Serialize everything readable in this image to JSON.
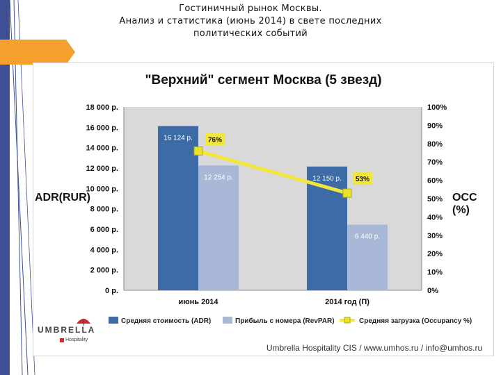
{
  "slide": {
    "title_lines": [
      "Гостиничный рынок Москвы.",
      "Анализ и статистика (июнь 2014)  в свете последних",
      "политических событий"
    ]
  },
  "branding": {
    "logo_text": "UMBRELLA",
    "logo_sub": "Hospitality",
    "footer": "Umbrella Hospitality CIS / www.umhos.ru / info@umhos.ru"
  },
  "colors": {
    "left_band": "#3e4f94",
    "accent_tab": "#f5a02d",
    "plot_bg": "#d9d9d9",
    "adr": "#3c6ba5",
    "revpar": "#a9b8d6",
    "occupancy_line": "#f0e73a",
    "occupancy_marker": "#e9e12a"
  },
  "chart_data": {
    "type": "bar",
    "title": "\"Верхний\" сегмент Москва  (5 звезд)",
    "ylabel": "ADR(RUR)",
    "y2label": "OCC (%)",
    "categories": [
      "июнь 2014",
      "2014 год (П)"
    ],
    "ylim": [
      0,
      18000
    ],
    "y2lim": [
      0,
      100
    ],
    "yticks": [
      "0 р.",
      "2 000 р.",
      "4 000 р.",
      "6 000 р.",
      "8 000 р.",
      "10 000 р.",
      "12 000 р.",
      "14 000 р.",
      "16 000 р.",
      "18 000 р."
    ],
    "y2ticks": [
      "0%",
      "10%",
      "20%",
      "30%",
      "40%",
      "50%",
      "60%",
      "70%",
      "80%",
      "90%",
      "100%"
    ],
    "series": [
      {
        "name": "Средняя стоимость (ADR)",
        "kind": "bar",
        "values": [
          16124,
          12150
        ],
        "labels": [
          "16 124 р.",
          "12 150 р."
        ]
      },
      {
        "name": "Прибыль с номера (RevPAR)",
        "kind": "bar",
        "values": [
          12254,
          6440
        ],
        "labels": [
          "12 254 р.",
          "6 440 р."
        ]
      },
      {
        "name": "Средняя загрузка (Occupancy %)",
        "kind": "line",
        "axis": "right",
        "values": [
          76,
          53
        ],
        "labels": [
          "76%",
          "53%"
        ]
      }
    ],
    "grid": false,
    "legend": "bottom"
  }
}
